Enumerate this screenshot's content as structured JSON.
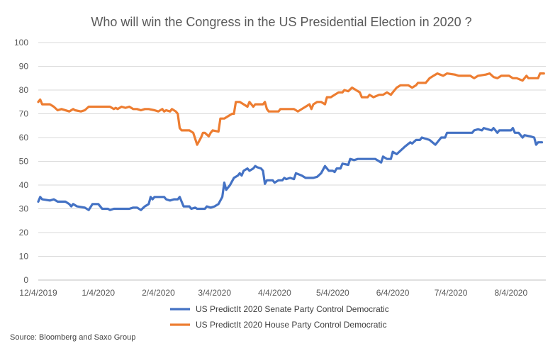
{
  "chart_data": {
    "type": "line",
    "title": "Who will win the Congress in the US Presidential Election in 2020 ?",
    "xlabel": "",
    "ylabel": "",
    "ylim": [
      0,
      100
    ],
    "yticks": [
      "0",
      "10",
      "20",
      "30",
      "40",
      "50",
      "60",
      "70",
      "80",
      "90",
      "100"
    ],
    "xlim": [
      "2019-12-04",
      "2020-08-22"
    ],
    "xticks": [
      {
        "date": "2019-12-04",
        "label": "12/4/2019"
      },
      {
        "date": "2020-01-04",
        "label": "1/4/2020"
      },
      {
        "date": "2020-02-04",
        "label": "2/4/2020"
      },
      {
        "date": "2020-03-04",
        "label": "3/4/2020"
      },
      {
        "date": "2020-04-04",
        "label": "4/4/2020"
      },
      {
        "date": "2020-05-04",
        "label": "5/4/2020"
      },
      {
        "date": "2020-06-04",
        "label": "6/4/2020"
      },
      {
        "date": "2020-07-04",
        "label": "7/4/2020"
      },
      {
        "date": "2020-08-04",
        "label": "8/4/2020"
      }
    ],
    "grid": "horizontal",
    "legend": "bottom",
    "series": [
      {
        "name": "US PredictIt 2020 Senate Party Control Democratic",
        "color": "#4472c4",
        "points": [
          [
            "2019-12-04",
            33
          ],
          [
            "2019-12-05",
            35
          ],
          [
            "2019-12-06",
            34
          ],
          [
            "2019-12-10",
            33.5
          ],
          [
            "2019-12-12",
            34
          ],
          [
            "2019-12-14",
            33
          ],
          [
            "2019-12-18",
            33
          ],
          [
            "2019-12-20",
            32
          ],
          [
            "2019-12-21",
            31
          ],
          [
            "2019-12-22",
            32
          ],
          [
            "2019-12-24",
            31
          ],
          [
            "2019-12-28",
            30.5
          ],
          [
            "2019-12-30",
            29.5
          ],
          [
            "2020-01-01",
            32
          ],
          [
            "2020-01-04",
            32
          ],
          [
            "2020-01-06",
            30
          ],
          [
            "2020-01-09",
            30
          ],
          [
            "2020-01-10",
            29.5
          ],
          [
            "2020-01-12",
            30
          ],
          [
            "2020-01-20",
            30
          ],
          [
            "2020-01-22",
            30.5
          ],
          [
            "2020-01-24",
            30.5
          ],
          [
            "2020-01-26",
            29.5
          ],
          [
            "2020-01-28",
            31
          ],
          [
            "2020-01-30",
            32
          ],
          [
            "2020-01-31",
            35
          ],
          [
            "2020-02-01",
            34
          ],
          [
            "2020-02-02",
            35
          ],
          [
            "2020-02-07",
            35
          ],
          [
            "2020-02-08",
            34
          ],
          [
            "2020-02-10",
            33.5
          ],
          [
            "2020-02-12",
            34
          ],
          [
            "2020-02-14",
            34
          ],
          [
            "2020-02-15",
            35
          ],
          [
            "2020-02-16",
            33
          ],
          [
            "2020-02-17",
            31
          ],
          [
            "2020-02-20",
            31
          ],
          [
            "2020-02-21",
            30
          ],
          [
            "2020-02-23",
            30.5
          ],
          [
            "2020-02-24",
            30
          ],
          [
            "2020-02-28",
            30
          ],
          [
            "2020-02-29",
            31
          ],
          [
            "2020-03-02",
            30.5
          ],
          [
            "2020-03-04",
            31
          ],
          [
            "2020-03-06",
            32
          ],
          [
            "2020-03-08",
            35
          ],
          [
            "2020-03-09",
            41
          ],
          [
            "2020-03-10",
            38
          ],
          [
            "2020-03-12",
            40
          ],
          [
            "2020-03-14",
            43
          ],
          [
            "2020-03-16",
            44
          ],
          [
            "2020-03-17",
            45
          ],
          [
            "2020-03-18",
            44
          ],
          [
            "2020-03-19",
            46
          ],
          [
            "2020-03-21",
            47
          ],
          [
            "2020-03-22",
            46
          ],
          [
            "2020-03-24",
            47
          ],
          [
            "2020-03-25",
            48
          ],
          [
            "2020-03-26",
            47.5
          ],
          [
            "2020-03-28",
            47
          ],
          [
            "2020-03-29",
            46
          ],
          [
            "2020-03-30",
            40.5
          ],
          [
            "2020-03-31",
            42
          ],
          [
            "2020-04-03",
            42
          ],
          [
            "2020-04-04",
            41
          ],
          [
            "2020-04-06",
            42
          ],
          [
            "2020-04-08",
            42
          ],
          [
            "2020-04-09",
            43
          ],
          [
            "2020-04-10",
            42.5
          ],
          [
            "2020-04-12",
            43
          ],
          [
            "2020-04-14",
            42.5
          ],
          [
            "2020-04-15",
            45
          ],
          [
            "2020-04-18",
            44
          ],
          [
            "2020-04-20",
            43
          ],
          [
            "2020-04-24",
            43
          ],
          [
            "2020-04-26",
            43.5
          ],
          [
            "2020-04-28",
            45
          ],
          [
            "2020-04-30",
            48
          ],
          [
            "2020-05-02",
            46
          ],
          [
            "2020-05-04",
            46
          ],
          [
            "2020-05-05",
            45.5
          ],
          [
            "2020-05-06",
            47
          ],
          [
            "2020-05-08",
            47
          ],
          [
            "2020-05-09",
            49
          ],
          [
            "2020-05-12",
            48.5
          ],
          [
            "2020-05-13",
            51
          ],
          [
            "2020-05-15",
            50.5
          ],
          [
            "2020-05-17",
            51
          ],
          [
            "2020-05-26",
            51
          ],
          [
            "2020-05-29",
            49.5
          ],
          [
            "2020-05-30",
            52
          ],
          [
            "2020-06-01",
            51
          ],
          [
            "2020-06-03",
            51
          ],
          [
            "2020-06-04",
            54
          ],
          [
            "2020-06-06",
            53
          ],
          [
            "2020-06-10",
            56
          ],
          [
            "2020-06-13",
            58
          ],
          [
            "2020-06-14",
            57.5
          ],
          [
            "2020-06-16",
            59
          ],
          [
            "2020-06-18",
            59
          ],
          [
            "2020-06-19",
            60
          ],
          [
            "2020-06-23",
            59
          ],
          [
            "2020-06-26",
            57
          ],
          [
            "2020-06-29",
            60
          ],
          [
            "2020-07-01",
            60
          ],
          [
            "2020-07-02",
            62
          ],
          [
            "2020-07-15",
            62
          ],
          [
            "2020-07-16",
            63
          ],
          [
            "2020-07-18",
            63.5
          ],
          [
            "2020-07-20",
            63
          ],
          [
            "2020-07-21",
            64
          ],
          [
            "2020-07-23",
            63.5
          ],
          [
            "2020-07-25",
            63
          ],
          [
            "2020-07-26",
            64
          ],
          [
            "2020-07-27",
            63
          ],
          [
            "2020-07-28",
            62
          ],
          [
            "2020-07-29",
            63
          ],
          [
            "2020-08-04",
            63
          ],
          [
            "2020-08-05",
            64
          ],
          [
            "2020-08-06",
            62
          ],
          [
            "2020-08-08",
            62
          ],
          [
            "2020-08-10",
            60
          ],
          [
            "2020-08-11",
            61
          ],
          [
            "2020-08-14",
            60.5
          ],
          [
            "2020-08-16",
            60
          ],
          [
            "2020-08-17",
            57
          ],
          [
            "2020-08-18",
            58
          ],
          [
            "2020-08-20",
            58
          ]
        ]
      },
      {
        "name": "US PredictIt 2020 House Party Control Democratic",
        "color": "#ed7d31",
        "points": [
          [
            "2019-12-04",
            75
          ],
          [
            "2019-12-05",
            76
          ],
          [
            "2019-12-06",
            74
          ],
          [
            "2019-12-10",
            74
          ],
          [
            "2019-12-12",
            73
          ],
          [
            "2019-12-14",
            71.5
          ],
          [
            "2019-12-16",
            72
          ],
          [
            "2019-12-20",
            71
          ],
          [
            "2019-12-21",
            71.5
          ],
          [
            "2019-12-22",
            72
          ],
          [
            "2019-12-23",
            71.5
          ],
          [
            "2019-12-26",
            71
          ],
          [
            "2019-12-28",
            71.5
          ],
          [
            "2019-12-30",
            73
          ],
          [
            "2020-01-01",
            73
          ],
          [
            "2020-01-04",
            73
          ],
          [
            "2020-01-08",
            73
          ],
          [
            "2020-01-10",
            73
          ],
          [
            "2020-01-12",
            72
          ],
          [
            "2020-01-13",
            72.5
          ],
          [
            "2020-01-14",
            72
          ],
          [
            "2020-01-16",
            73
          ],
          [
            "2020-01-18",
            72.5
          ],
          [
            "2020-01-20",
            73
          ],
          [
            "2020-01-22",
            72
          ],
          [
            "2020-01-24",
            72
          ],
          [
            "2020-01-26",
            71.5
          ],
          [
            "2020-01-28",
            72
          ],
          [
            "2020-01-30",
            72
          ],
          [
            "2020-02-02",
            71.5
          ],
          [
            "2020-02-04",
            71
          ],
          [
            "2020-02-06",
            72
          ],
          [
            "2020-02-07",
            71
          ],
          [
            "2020-02-08",
            71.5
          ],
          [
            "2020-02-10",
            71
          ],
          [
            "2020-02-11",
            72
          ],
          [
            "2020-02-13",
            71
          ],
          [
            "2020-02-14",
            70
          ],
          [
            "2020-02-15",
            64
          ],
          [
            "2020-02-16",
            63
          ],
          [
            "2020-02-18",
            63
          ],
          [
            "2020-02-20",
            63
          ],
          [
            "2020-02-22",
            62
          ],
          [
            "2020-02-24",
            57
          ],
          [
            "2020-02-26",
            60
          ],
          [
            "2020-02-27",
            62
          ],
          [
            "2020-02-28",
            62
          ],
          [
            "2020-03-01",
            60.5
          ],
          [
            "2020-03-02",
            62
          ],
          [
            "2020-03-03",
            63
          ],
          [
            "2020-03-06",
            62.5
          ],
          [
            "2020-03-07",
            68
          ],
          [
            "2020-03-09",
            68
          ],
          [
            "2020-03-11",
            69
          ],
          [
            "2020-03-13",
            70
          ],
          [
            "2020-03-14",
            70
          ],
          [
            "2020-03-15",
            75
          ],
          [
            "2020-03-17",
            75
          ],
          [
            "2020-03-19",
            74
          ],
          [
            "2020-03-21",
            73
          ],
          [
            "2020-03-22",
            75
          ],
          [
            "2020-03-23",
            74
          ],
          [
            "2020-03-24",
            73
          ],
          [
            "2020-03-25",
            74
          ],
          [
            "2020-03-27",
            74
          ],
          [
            "2020-03-29",
            74
          ],
          [
            "2020-03-30",
            75
          ],
          [
            "2020-03-31",
            72
          ],
          [
            "2020-04-01",
            71
          ],
          [
            "2020-04-03",
            71
          ],
          [
            "2020-04-06",
            71
          ],
          [
            "2020-04-07",
            72
          ],
          [
            "2020-04-10",
            72
          ],
          [
            "2020-04-14",
            72
          ],
          [
            "2020-04-16",
            71
          ],
          [
            "2020-04-18",
            72
          ],
          [
            "2020-04-20",
            73
          ],
          [
            "2020-04-22",
            74
          ],
          [
            "2020-04-23",
            72
          ],
          [
            "2020-04-24",
            74
          ],
          [
            "2020-04-26",
            75
          ],
          [
            "2020-04-28",
            75
          ],
          [
            "2020-04-30",
            74
          ],
          [
            "2020-05-01",
            77
          ],
          [
            "2020-05-03",
            77
          ],
          [
            "2020-05-05",
            78
          ],
          [
            "2020-05-07",
            79
          ],
          [
            "2020-05-09",
            79
          ],
          [
            "2020-05-10",
            80
          ],
          [
            "2020-05-12",
            79.5
          ],
          [
            "2020-05-14",
            81
          ],
          [
            "2020-05-16",
            80
          ],
          [
            "2020-05-18",
            79
          ],
          [
            "2020-05-19",
            77
          ],
          [
            "2020-05-22",
            77
          ],
          [
            "2020-05-23",
            78
          ],
          [
            "2020-05-25",
            77
          ],
          [
            "2020-05-28",
            78
          ],
          [
            "2020-05-30",
            78
          ],
          [
            "2020-06-01",
            79
          ],
          [
            "2020-06-03",
            78
          ],
          [
            "2020-06-04",
            79
          ],
          [
            "2020-06-05",
            80
          ],
          [
            "2020-06-06",
            81
          ],
          [
            "2020-06-08",
            82
          ],
          [
            "2020-06-12",
            82
          ],
          [
            "2020-06-14",
            81
          ],
          [
            "2020-06-16",
            82
          ],
          [
            "2020-06-17",
            83
          ],
          [
            "2020-06-21",
            83
          ],
          [
            "2020-06-23",
            85
          ],
          [
            "2020-06-25",
            86
          ],
          [
            "2020-06-27",
            87
          ],
          [
            "2020-06-30",
            86
          ],
          [
            "2020-07-02",
            87
          ],
          [
            "2020-07-06",
            86.5
          ],
          [
            "2020-07-08",
            86
          ],
          [
            "2020-07-14",
            86
          ],
          [
            "2020-07-16",
            85
          ],
          [
            "2020-07-18",
            86
          ],
          [
            "2020-07-22",
            86.5
          ],
          [
            "2020-07-24",
            87
          ],
          [
            "2020-07-26",
            85.5
          ],
          [
            "2020-07-28",
            85
          ],
          [
            "2020-07-30",
            86
          ],
          [
            "2020-08-03",
            86
          ],
          [
            "2020-08-05",
            85
          ],
          [
            "2020-08-07",
            85
          ],
          [
            "2020-08-10",
            84
          ],
          [
            "2020-08-12",
            86
          ],
          [
            "2020-08-13",
            85
          ],
          [
            "2020-08-16",
            85
          ],
          [
            "2020-08-18",
            85
          ],
          [
            "2020-08-19",
            87
          ],
          [
            "2020-08-21",
            87
          ]
        ]
      }
    ]
  },
  "footer": {
    "source": "Source: Bloomberg and Saxo Group"
  }
}
